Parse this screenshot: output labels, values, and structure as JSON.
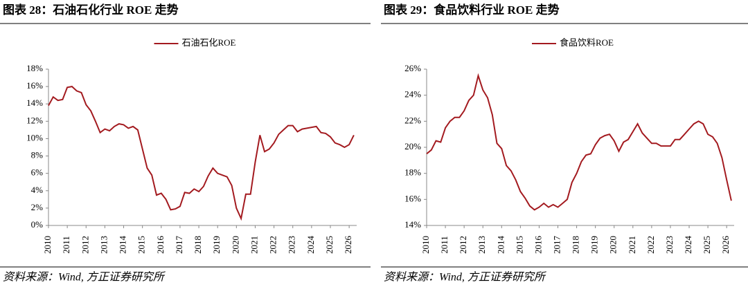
{
  "chart_data": [
    {
      "type": "line",
      "title": "图表 28：石油石化行业 ROE 走势",
      "source": "资料来源：Wind, 方正证券研究所",
      "x": [
        2010,
        2010.25,
        2010.5,
        2010.75,
        2011,
        2011.25,
        2011.5,
        2011.75,
        2012,
        2012.25,
        2012.5,
        2012.75,
        2013,
        2013.25,
        2013.5,
        2013.75,
        2014,
        2014.25,
        2014.5,
        2014.75,
        2015,
        2015.25,
        2015.5,
        2015.75,
        2016,
        2016.25,
        2016.5,
        2016.75,
        2017,
        2017.25,
        2017.5,
        2017.75,
        2018,
        2018.25,
        2018.5,
        2018.75,
        2019,
        2019.25,
        2019.5,
        2019.75,
        2020,
        2020.25,
        2020.5,
        2020.75,
        2021,
        2021.25,
        2021.5,
        2021.75,
        2022,
        2022.25,
        2022.5,
        2022.75,
        2023,
        2023.25,
        2023.5,
        2023.75,
        2024,
        2024.25,
        2024.5,
        2024.75,
        2025,
        2025.25,
        2025.5,
        2025.75,
        2026,
        2026.25
      ],
      "series": [
        {
          "name": "石油石化ROE",
          "color": "#a31a1f",
          "values": [
            13.8,
            14.8,
            14.4,
            14.5,
            15.9,
            16.0,
            15.5,
            15.3,
            13.9,
            13.2,
            12.0,
            10.7,
            11.1,
            10.9,
            11.4,
            11.7,
            11.6,
            11.2,
            11.4,
            11.0,
            8.8,
            6.6,
            5.8,
            3.5,
            3.7,
            3.0,
            1.8,
            1.9,
            2.2,
            3.8,
            3.7,
            4.2,
            3.9,
            4.5,
            5.7,
            6.6,
            6.0,
            5.8,
            5.6,
            4.6,
            2.0,
            0.8,
            3.6,
            3.6,
            7.3,
            10.4,
            8.5,
            8.8,
            9.5,
            10.5,
            11.0,
            11.5,
            11.5,
            10.8,
            11.1,
            11.2,
            11.3,
            11.4,
            10.7,
            10.6,
            10.2,
            9.5,
            9.3,
            9.0,
            9.3,
            10.4
          ]
        }
      ],
      "xlim": [
        2010,
        2026.4
      ],
      "xticks": [
        2010,
        2011,
        2012,
        2013,
        2014,
        2015,
        2016,
        2017,
        2018,
        2019,
        2020,
        2021,
        2022,
        2023,
        2024,
        2025,
        2026
      ],
      "ylim": [
        0,
        18
      ],
      "yticks": [
        {
          "value": 0,
          "label": "0%"
        },
        {
          "value": 2,
          "label": "2%"
        },
        {
          "value": 4,
          "label": "4%"
        },
        {
          "value": 6,
          "label": "6%"
        },
        {
          "value": 8,
          "label": "8%"
        },
        {
          "value": 10,
          "label": "10%"
        },
        {
          "value": 12,
          "label": "12%"
        },
        {
          "value": 14,
          "label": "14%"
        },
        {
          "value": 16,
          "label": "16%"
        },
        {
          "value": 18,
          "label": "18%"
        }
      ],
      "legend": "top"
    },
    {
      "type": "line",
      "title": "图表 29：食品饮料行业 ROE 走势",
      "source": "资料来源：Wind, 方正证券研究所",
      "x": [
        2010,
        2010.25,
        2010.5,
        2010.75,
        2011,
        2011.25,
        2011.5,
        2011.75,
        2012,
        2012.25,
        2012.5,
        2012.75,
        2013,
        2013.25,
        2013.5,
        2013.75,
        2014,
        2014.25,
        2014.5,
        2014.75,
        2015,
        2015.25,
        2015.5,
        2015.75,
        2016,
        2016.25,
        2016.5,
        2016.75,
        2017,
        2017.25,
        2017.5,
        2017.75,
        2018,
        2018.25,
        2018.5,
        2018.75,
        2019,
        2019.25,
        2019.5,
        2019.75,
        2020,
        2020.25,
        2020.5,
        2020.75,
        2021,
        2021.25,
        2021.5,
        2021.75,
        2022,
        2022.25,
        2022.5,
        2022.75,
        2023,
        2023.25,
        2023.5,
        2023.75,
        2024,
        2024.25,
        2024.5,
        2024.75,
        2025,
        2025.25,
        2025.5,
        2025.75,
        2026,
        2026.25
      ],
      "series": [
        {
          "name": "食品饮料ROE",
          "color": "#a31a1f",
          "values": [
            19.5,
            19.8,
            20.5,
            20.4,
            21.5,
            22.0,
            22.3,
            22.3,
            22.8,
            23.6,
            24.0,
            25.5,
            24.4,
            23.8,
            22.5,
            20.3,
            19.9,
            18.6,
            18.2,
            17.5,
            16.6,
            16.1,
            15.5,
            15.2,
            15.4,
            15.7,
            15.4,
            15.6,
            15.4,
            15.7,
            16.0,
            17.3,
            18.0,
            18.9,
            19.4,
            19.5,
            20.2,
            20.7,
            20.9,
            21.0,
            20.5,
            19.7,
            20.4,
            20.6,
            21.2,
            21.8,
            21.1,
            20.7,
            20.3,
            20.3,
            20.1,
            20.1,
            20.1,
            20.6,
            20.6,
            21.0,
            21.4,
            21.8,
            22.0,
            21.8,
            21.0,
            20.8,
            20.3,
            19.2,
            17.5,
            15.9
          ]
        }
      ],
      "xlim": [
        2010,
        2026.4
      ],
      "xticks": [
        2010,
        2011,
        2012,
        2013,
        2014,
        2015,
        2016,
        2017,
        2018,
        2019,
        2020,
        2021,
        2022,
        2023,
        2024,
        2025,
        2026
      ],
      "ylim": [
        14,
        26
      ],
      "yticks": [
        {
          "value": 14,
          "label": "14%"
        },
        {
          "value": 16,
          "label": "16%"
        },
        {
          "value": 18,
          "label": "18%"
        },
        {
          "value": 20,
          "label": "20%"
        },
        {
          "value": 22,
          "label": "22%"
        },
        {
          "value": 24,
          "label": "24%"
        },
        {
          "value": 26,
          "label": "26%"
        }
      ],
      "legend": "top"
    }
  ]
}
